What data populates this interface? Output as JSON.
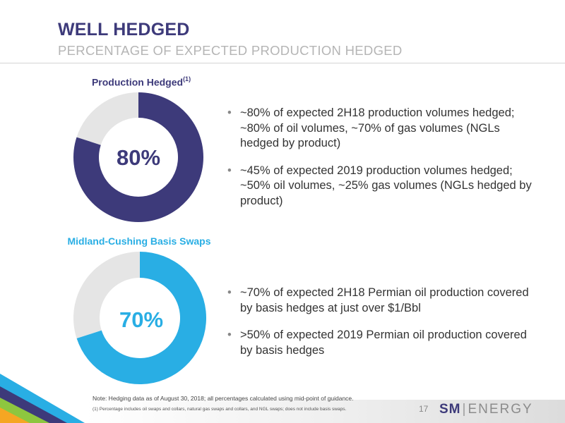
{
  "header": {
    "title": "WELL HEDGED",
    "subtitle": "PERCENTAGE OF EXPECTED PRODUCTION HEDGED"
  },
  "colors": {
    "navy": "#3d3a7a",
    "cyan": "#29aee4",
    "light_gray": "#e5e5e5"
  },
  "charts": [
    {
      "label": "Production Hedged",
      "label_sup": "(1)",
      "percent_text": "80%",
      "fraction": 0.8,
      "color": "#3d3a7a",
      "bullets": [
        "~80% of expected 2H18 production volumes hedged; ~80% of oil volumes, ~70% of gas volumes (NGLs hedged by product)",
        "~45% of expected 2019 production volumes hedged; ~50% oil volumes, ~25% gas volumes (NGLs hedged by product)"
      ]
    },
    {
      "label": "Midland-Cushing Basis Swaps",
      "label_sup": "",
      "percent_text": "70%",
      "fraction": 0.7,
      "color": "#29aee4",
      "bullets": [
        "~70% of expected  2H18 Permian oil production covered by basis hedges at just over $1/Bbl",
        ">50% of expected 2019 Permian oil production covered by basis hedges"
      ]
    }
  ],
  "footer": {
    "note": "Note: Hedging data as of August 30, 2018; all percentages calculated using mid-point of guidance.",
    "footnote": "(1) Percentage includes oil swaps and collars, natural gas swaps and collars, and NGL swaps; does not include basis swaps.",
    "page_number": "17",
    "logo_sm": "SM",
    "logo_sep": "|",
    "logo_energy": "ENERGY"
  }
}
